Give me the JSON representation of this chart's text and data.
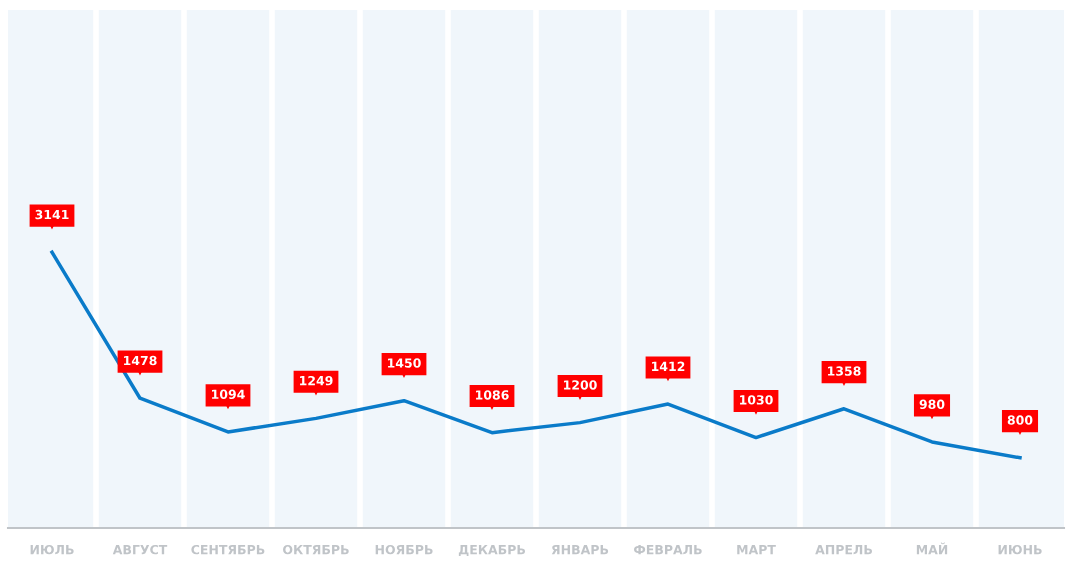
{
  "chart_data": {
    "type": "line",
    "categories": [
      "ИЮЛЬ",
      "АВГУСТ",
      "СЕНТЯБРЬ",
      "ОКТЯБРЬ",
      "НОЯБРЬ",
      "ДЕКАБРЬ",
      "ЯНВАРЬ",
      "ФЕВРАЛЬ",
      "МАРТ",
      "АПРЕЛЬ",
      "МАЙ",
      "ИЮНЬ"
    ],
    "series": [
      {
        "color": "#0a7bc9",
        "values": [
          3141,
          1478,
          1094,
          1249,
          1450,
          1086,
          1200,
          1412,
          1030,
          1358,
          980,
          800
        ]
      }
    ],
    "ylim": [
      0,
      5900
    ],
    "data_labels": true,
    "grid": "x",
    "marker": "none",
    "line_style": "solid",
    "tick_labels": "x"
  }
}
